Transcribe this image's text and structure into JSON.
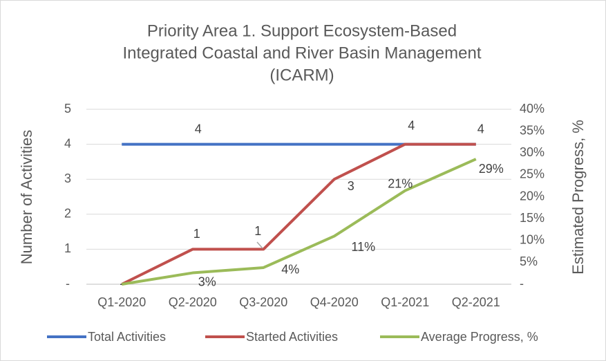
{
  "chart_data": {
    "type": "line",
    "title": [
      "Priority Area 1. Support Ecosystem-Based",
      "Integrated Coastal and River Basin Management",
      "(ICARM)"
    ],
    "categories": [
      "Q1-2020",
      "Q2-2020",
      "Q3-2020",
      "Q4-2020",
      "Q1-2021",
      "Q2-2021"
    ],
    "ylabel": "Number of Activities",
    "y2label": "Estimated Progress, %",
    "ylim": [
      0,
      5
    ],
    "yticks": [
      {
        "value": 0,
        "label": "-"
      },
      1,
      2,
      3,
      4,
      5
    ],
    "y2lim": [
      0,
      40
    ],
    "y2ticks": [
      {
        "value": 0,
        "label": "-"
      },
      {
        "value": 5,
        "label": "5%"
      },
      {
        "value": 10,
        "label": "10%"
      },
      {
        "value": 15,
        "label": "15%"
      },
      {
        "value": 20,
        "label": "20%"
      },
      {
        "value": 25,
        "label": "25%"
      },
      {
        "value": 30,
        "label": "30%"
      },
      {
        "value": 35,
        "label": "35%"
      },
      {
        "value": 40,
        "label": "40%"
      }
    ],
    "grid": true,
    "legend": "bottom",
    "series": [
      {
        "name": "Total Activities",
        "color": "#4472c4",
        "values": [
          4,
          4,
          4,
          4,
          4,
          4
        ],
        "value_labels": [
          null,
          "4",
          null,
          null,
          null,
          null
        ]
      },
      {
        "name": "Started Activities",
        "color": "#c0504d",
        "values": [
          0,
          1,
          1,
          3,
          4,
          4
        ],
        "value_labels": [
          "-",
          "1",
          "1",
          "3",
          "4",
          "4"
        ]
      },
      {
        "name": "Average Progress, %",
        "color": "#9bbb59",
        "axis": "y2",
        "values": [
          0,
          2.6,
          3.8,
          11,
          21.4,
          28.6
        ],
        "value_labels": [
          null,
          "3%",
          "4%",
          "11%",
          "21%",
          "29%"
        ]
      }
    ]
  }
}
